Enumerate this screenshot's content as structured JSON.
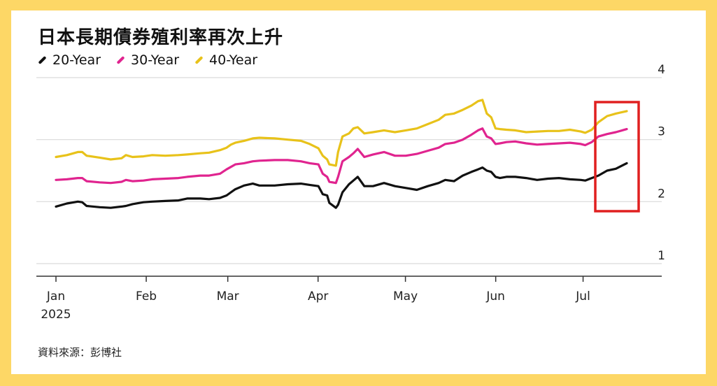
{
  "title": "日本長期債券殖利率再次上升",
  "source": "資料來源：彭博社",
  "chart_data": {
    "type": "line",
    "x_ticks": [
      "Jan",
      "Feb",
      "Mar",
      "Apr",
      "May",
      "Jun",
      "Jul"
    ],
    "x_year_label": "2025",
    "y_ticks": [
      1,
      2,
      3,
      4
    ],
    "ylim": [
      1,
      4
    ],
    "grid": true,
    "legend_placement": "top-left",
    "highlight_box_color": "#e02020",
    "series": [
      {
        "name": "20-Year",
        "color": "#111111",
        "points": [
          [
            0,
            1.92
          ],
          [
            5,
            1.97
          ],
          [
            10,
            2.0
          ],
          [
            12,
            1.99
          ],
          [
            14,
            1.93
          ],
          [
            20,
            1.91
          ],
          [
            25,
            1.9
          ],
          [
            30,
            1.92
          ],
          [
            32,
            1.93
          ],
          [
            35,
            1.96
          ],
          [
            40,
            1.99
          ],
          [
            44,
            2.0
          ],
          [
            50,
            2.01
          ],
          [
            56,
            2.02
          ],
          [
            60,
            2.05
          ],
          [
            66,
            2.05
          ],
          [
            70,
            2.04
          ],
          [
            75,
            2.06
          ],
          [
            78,
            2.1
          ],
          [
            80,
            2.15
          ],
          [
            82,
            2.2
          ],
          [
            86,
            2.26
          ],
          [
            90,
            2.29
          ],
          [
            93,
            2.26
          ],
          [
            100,
            2.26
          ],
          [
            106,
            2.28
          ],
          [
            112,
            2.29
          ],
          [
            116,
            2.27
          ],
          [
            120,
            2.25
          ],
          [
            122,
            2.12
          ],
          [
            124,
            2.1
          ],
          [
            125,
            1.98
          ],
          [
            128,
            1.9
          ],
          [
            129,
            1.95
          ],
          [
            131,
            2.15
          ],
          [
            134,
            2.28
          ],
          [
            136,
            2.34
          ],
          [
            138,
            2.4
          ],
          [
            141,
            2.25
          ],
          [
            145,
            2.25
          ],
          [
            150,
            2.3
          ],
          [
            155,
            2.25
          ],
          [
            160,
            2.22
          ],
          [
            165,
            2.19
          ],
          [
            170,
            2.25
          ],
          [
            175,
            2.3
          ],
          [
            178,
            2.35
          ],
          [
            182,
            2.33
          ],
          [
            186,
            2.42
          ],
          [
            190,
            2.48
          ],
          [
            193,
            2.52
          ],
          [
            195,
            2.55
          ],
          [
            197,
            2.5
          ],
          [
            199,
            2.48
          ],
          [
            201,
            2.4
          ],
          [
            203,
            2.38
          ],
          [
            206,
            2.4
          ],
          [
            210,
            2.4
          ],
          [
            215,
            2.38
          ],
          [
            220,
            2.35
          ],
          [
            225,
            2.37
          ],
          [
            230,
            2.38
          ],
          [
            235,
            2.36
          ],
          [
            240,
            2.35
          ],
          [
            242,
            2.34
          ],
          [
            245,
            2.38
          ],
          [
            248,
            2.42
          ],
          [
            252,
            2.5
          ],
          [
            256,
            2.53
          ],
          [
            261,
            2.62
          ]
        ]
      },
      {
        "name": "30-Year",
        "color": "#e0248f",
        "points": [
          [
            0,
            2.35
          ],
          [
            5,
            2.36
          ],
          [
            10,
            2.38
          ],
          [
            12,
            2.38
          ],
          [
            14,
            2.33
          ],
          [
            20,
            2.31
          ],
          [
            25,
            2.3
          ],
          [
            30,
            2.32
          ],
          [
            32,
            2.35
          ],
          [
            35,
            2.33
          ],
          [
            40,
            2.34
          ],
          [
            44,
            2.36
          ],
          [
            50,
            2.37
          ],
          [
            56,
            2.38
          ],
          [
            60,
            2.4
          ],
          [
            66,
            2.42
          ],
          [
            70,
            2.42
          ],
          [
            75,
            2.45
          ],
          [
            78,
            2.52
          ],
          [
            80,
            2.56
          ],
          [
            82,
            2.6
          ],
          [
            86,
            2.62
          ],
          [
            90,
            2.65
          ],
          [
            93,
            2.66
          ],
          [
            100,
            2.67
          ],
          [
            106,
            2.67
          ],
          [
            112,
            2.65
          ],
          [
            116,
            2.62
          ],
          [
            120,
            2.6
          ],
          [
            122,
            2.45
          ],
          [
            124,
            2.4
          ],
          [
            125,
            2.32
          ],
          [
            128,
            2.3
          ],
          [
            129,
            2.4
          ],
          [
            131,
            2.65
          ],
          [
            134,
            2.72
          ],
          [
            136,
            2.78
          ],
          [
            138,
            2.85
          ],
          [
            141,
            2.72
          ],
          [
            145,
            2.76
          ],
          [
            150,
            2.8
          ],
          [
            155,
            2.74
          ],
          [
            160,
            2.74
          ],
          [
            165,
            2.77
          ],
          [
            170,
            2.82
          ],
          [
            175,
            2.87
          ],
          [
            178,
            2.93
          ],
          [
            182,
            2.95
          ],
          [
            186,
            3.0
          ],
          [
            190,
            3.08
          ],
          [
            193,
            3.15
          ],
          [
            195,
            3.18
          ],
          [
            197,
            3.05
          ],
          [
            199,
            3.02
          ],
          [
            201,
            2.93
          ],
          [
            203,
            2.94
          ],
          [
            206,
            2.96
          ],
          [
            210,
            2.97
          ],
          [
            215,
            2.94
          ],
          [
            220,
            2.92
          ],
          [
            225,
            2.93
          ],
          [
            230,
            2.94
          ],
          [
            235,
            2.95
          ],
          [
            240,
            2.93
          ],
          [
            242,
            2.91
          ],
          [
            245,
            2.96
          ],
          [
            248,
            3.05
          ],
          [
            252,
            3.09
          ],
          [
            256,
            3.12
          ],
          [
            261,
            3.17
          ]
        ]
      },
      {
        "name": "40-Year",
        "color": "#e8c21a",
        "points": [
          [
            0,
            2.72
          ],
          [
            5,
            2.75
          ],
          [
            10,
            2.8
          ],
          [
            12,
            2.8
          ],
          [
            14,
            2.74
          ],
          [
            20,
            2.71
          ],
          [
            25,
            2.68
          ],
          [
            30,
            2.7
          ],
          [
            32,
            2.75
          ],
          [
            35,
            2.72
          ],
          [
            40,
            2.73
          ],
          [
            44,
            2.75
          ],
          [
            50,
            2.74
          ],
          [
            56,
            2.75
          ],
          [
            60,
            2.76
          ],
          [
            66,
            2.78
          ],
          [
            70,
            2.79
          ],
          [
            75,
            2.83
          ],
          [
            78,
            2.87
          ],
          [
            80,
            2.92
          ],
          [
            82,
            2.95
          ],
          [
            86,
            2.98
          ],
          [
            90,
            3.02
          ],
          [
            93,
            3.03
          ],
          [
            100,
            3.02
          ],
          [
            106,
            3.0
          ],
          [
            112,
            2.98
          ],
          [
            116,
            2.93
          ],
          [
            120,
            2.86
          ],
          [
            122,
            2.74
          ],
          [
            124,
            2.68
          ],
          [
            125,
            2.6
          ],
          [
            128,
            2.58
          ],
          [
            129,
            2.8
          ],
          [
            131,
            3.05
          ],
          [
            134,
            3.1
          ],
          [
            136,
            3.18
          ],
          [
            138,
            3.2
          ],
          [
            141,
            3.1
          ],
          [
            145,
            3.12
          ],
          [
            150,
            3.15
          ],
          [
            155,
            3.12
          ],
          [
            160,
            3.15
          ],
          [
            165,
            3.18
          ],
          [
            170,
            3.25
          ],
          [
            175,
            3.32
          ],
          [
            178,
            3.4
          ],
          [
            182,
            3.42
          ],
          [
            186,
            3.48
          ],
          [
            190,
            3.55
          ],
          [
            193,
            3.62
          ],
          [
            195,
            3.64
          ],
          [
            197,
            3.42
          ],
          [
            199,
            3.36
          ],
          [
            201,
            3.18
          ],
          [
            203,
            3.17
          ],
          [
            206,
            3.16
          ],
          [
            210,
            3.15
          ],
          [
            215,
            3.12
          ],
          [
            220,
            3.13
          ],
          [
            225,
            3.14
          ],
          [
            230,
            3.14
          ],
          [
            235,
            3.16
          ],
          [
            240,
            3.13
          ],
          [
            242,
            3.11
          ],
          [
            245,
            3.16
          ],
          [
            248,
            3.28
          ],
          [
            252,
            3.38
          ],
          [
            256,
            3.42
          ],
          [
            261,
            3.46
          ]
        ]
      }
    ]
  }
}
